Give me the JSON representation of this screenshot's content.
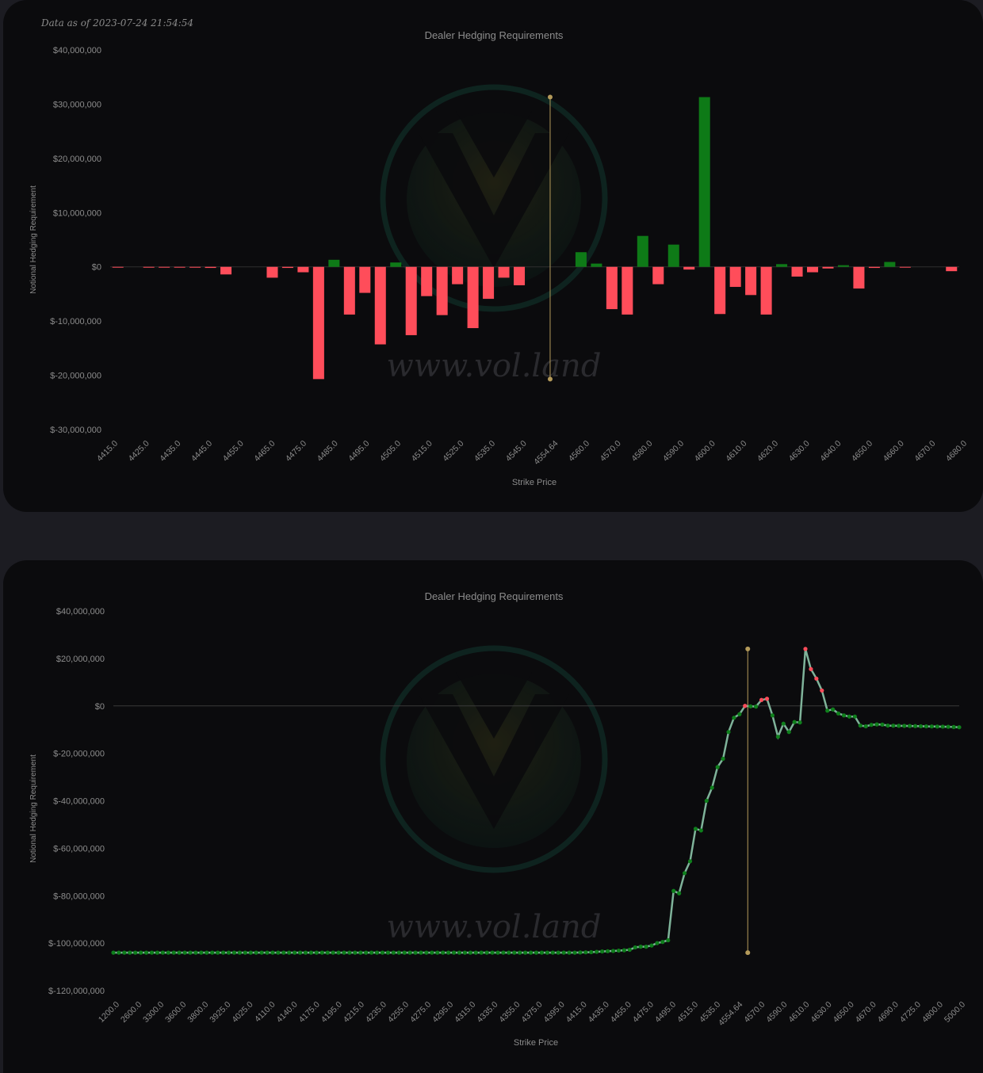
{
  "header": {
    "data_as_of": "Data as of 2023-07-24 21:54:54"
  },
  "watermark": {
    "text": "www.vol.land"
  },
  "colors": {
    "positive": "#0e7a17",
    "negative": "#ff4d5a",
    "spot_line": "#b49a5a",
    "line": "#7fb39a",
    "axis_text": "#8c8c8c",
    "panel_bg": "#0b0b0d",
    "page_bg": "#1c1c22"
  },
  "chart_data": [
    {
      "type": "bar",
      "title": "Dealer Hedging Requirements",
      "xlabel": "Strike Price",
      "ylabel": "Notional Hedging Requirement",
      "ylim": [
        -30000000,
        40000000
      ],
      "yticks": [
        "$40,000,000",
        "$30,000,000",
        "$20,000,000",
        "$10,000,000",
        "$0",
        "$-10,000,000",
        "$-20,000,000",
        "$-30,000,000"
      ],
      "spot_label": "4554.64",
      "xtick_labels": [
        "4415.0",
        "4425.0",
        "4435.0",
        "4445.0",
        "4455.0",
        "4465.0",
        "4475.0",
        "4485.0",
        "4495.0",
        "4505.0",
        "4515.0",
        "4525.0",
        "4535.0",
        "4545.0",
        "4554.64",
        "4560.0",
        "4570.0",
        "4580.0",
        "4590.0",
        "4600.0",
        "4610.0",
        "4620.0",
        "4630.0",
        "4640.0",
        "4650.0",
        "4660.0",
        "4670.0",
        "4680.0"
      ],
      "categories": [
        "4415",
        "4420",
        "4425",
        "4430",
        "4435",
        "4440",
        "4445",
        "4450",
        "4455",
        "4460",
        "4465",
        "4470",
        "4475",
        "4480",
        "4485",
        "4490",
        "4495",
        "4500",
        "4505",
        "4510",
        "4515",
        "4520",
        "4525",
        "4530",
        "4535",
        "4540",
        "4545",
        "4550",
        "4554.64",
        "4555",
        "4560",
        "4565",
        "4570",
        "4575",
        "4580",
        "4585",
        "4590",
        "4595",
        "4600",
        "4605",
        "4610",
        "4615",
        "4620",
        "4625",
        "4630",
        "4635",
        "4640",
        "4645",
        "4650",
        "4655",
        "4660",
        "4665",
        "4670",
        "4675",
        "4680"
      ],
      "values": [
        -80000,
        0,
        -150000,
        -100000,
        -100000,
        -150000,
        -200000,
        -1400000,
        0,
        0,
        -2000000,
        -200000,
        -1000000,
        -20700000,
        1300000,
        -8800000,
        -4800000,
        -14300000,
        800000,
        -12600000,
        -5400000,
        -8900000,
        -3200000,
        -11300000,
        -5900000,
        -2000000,
        -3400000,
        0,
        0,
        0,
        2700000,
        600000,
        -7800000,
        -8800000,
        5700000,
        -3200000,
        4100000,
        -500000,
        31300000,
        -8700000,
        -3700000,
        -5200000,
        -8800000,
        500000,
        -1800000,
        -1000000,
        -300000,
        300000,
        -4000000,
        -200000,
        900000,
        -100000,
        0,
        0,
        -800000
      ]
    },
    {
      "type": "line",
      "title": "Dealer Hedging Requirements",
      "xlabel": "Strike Price",
      "ylabel": "Notional Hedging Requirement",
      "ylim": [
        -120000000,
        40000000
      ],
      "yticks": [
        "$40,000,000",
        "$20,000,000",
        "$0",
        "$-20,000,000",
        "$-40,000,000",
        "$-60,000,000",
        "$-80,000,000",
        "$-100,000,000",
        "$-120,000,000"
      ],
      "spot_label": "4554.64",
      "xtick_labels": [
        "1200.0",
        "2600.0",
        "3300.0",
        "3600.0",
        "3800.0",
        "3925.0",
        "4025.0",
        "4110.0",
        "4140.0",
        "4175.0",
        "4195.0",
        "4215.0",
        "4235.0",
        "4255.0",
        "4275.0",
        "4295.0",
        "4315.0",
        "4335.0",
        "4355.0",
        "4375.0",
        "4395.0",
        "4415.0",
        "4435.0",
        "4455.0",
        "4475.0",
        "4495.0",
        "4515.0",
        "4535.0",
        "4554.64",
        "4570.0",
        "4590.0",
        "4610.0",
        "4630.0",
        "4650.0",
        "4670.0",
        "4690.0",
        "4725.0",
        "4800.0",
        "5000.0"
      ],
      "anchors": [
        [
          0,
          -104000000
        ],
        [
          84,
          -104000000
        ],
        [
          87,
          -103800000
        ],
        [
          89,
          -103500000
        ],
        [
          91,
          -103300000
        ],
        [
          93,
          -103000000
        ],
        [
          94,
          -102800000
        ],
        [
          95,
          -101800000
        ],
        [
          96,
          -101500000
        ],
        [
          97,
          -101500000
        ],
        [
          98,
          -101000000
        ],
        [
          99,
          -100000000
        ],
        [
          100,
          -99500000
        ],
        [
          101,
          -98800000
        ],
        [
          102,
          -78000000
        ],
        [
          103,
          -79000000
        ],
        [
          104,
          -70500000
        ],
        [
          105,
          -65500000
        ],
        [
          106,
          -51800000
        ],
        [
          107,
          -52500000
        ],
        [
          108,
          -40000000
        ],
        [
          109,
          -34500000
        ],
        [
          110,
          -25800000
        ],
        [
          111,
          -22300000
        ],
        [
          112,
          -11000000
        ],
        [
          113,
          -5000000
        ],
        [
          114,
          -3500000
        ],
        [
          115,
          0
        ],
        [
          116,
          -200000
        ],
        [
          117,
          -300000
        ],
        [
          118,
          2500000
        ],
        [
          119,
          3000000
        ],
        [
          120,
          -4000000
        ],
        [
          121,
          -13000000
        ],
        [
          122,
          -7500000
        ],
        [
          123,
          -11000000
        ],
        [
          124,
          -6800000
        ],
        [
          125,
          -7000000
        ],
        [
          126,
          24000000
        ],
        [
          127,
          15500000
        ],
        [
          128,
          11500000
        ],
        [
          129,
          6500000
        ],
        [
          130,
          -2000000
        ],
        [
          131,
          -1500000
        ],
        [
          132,
          -3200000
        ],
        [
          133,
          -4000000
        ],
        [
          134,
          -4500000
        ],
        [
          135,
          -4500000
        ],
        [
          136,
          -8300000
        ],
        [
          137,
          -8600000
        ],
        [
          138,
          -8000000
        ],
        [
          139,
          -7800000
        ],
        [
          140,
          -7900000
        ],
        [
          141,
          -8300000
        ],
        [
          152,
          -8800000
        ],
        [
          154,
          -9000000
        ]
      ],
      "red_points": [
        115,
        118,
        119,
        126,
        127,
        128,
        129
      ],
      "spot_index": 115.5
    }
  ]
}
